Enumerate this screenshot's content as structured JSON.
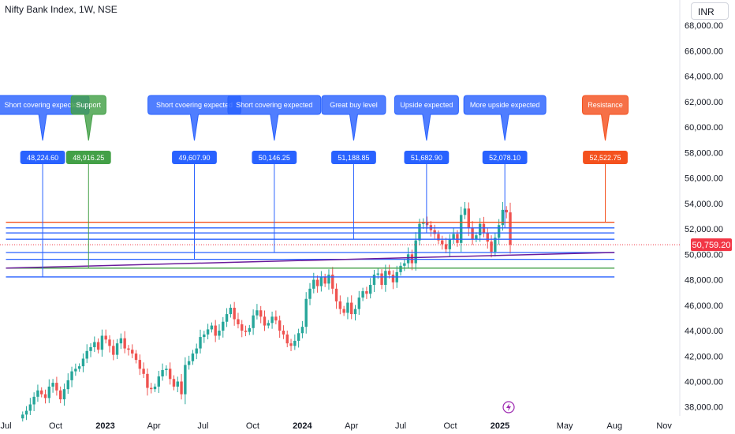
{
  "header": {
    "symbol_title": "Nifty Bank Index, 1W, NSE",
    "currency": "INR"
  },
  "colors": {
    "up": "#26a69a",
    "down": "#ef5350",
    "blue": "#2962ff",
    "green": "#43a047",
    "orange": "#f4511e",
    "purple": "#6a1b9a",
    "last_price": "#f23645"
  },
  "chart_data": {
    "type": "candlestick",
    "title": "Nifty Bank Index, 1W, NSE",
    "ylim": [
      37300,
      70000
    ],
    "x_range": [
      "2022-06-20",
      "2025-11-30"
    ],
    "y_ticks": [
      "38,000.00",
      "40,000.00",
      "42,000.00",
      "44,000.00",
      "46,000.00",
      "48,000.00",
      "50,000.00",
      "52,000.00",
      "54,000.00",
      "56,000.00",
      "58,000.00",
      "60,000.00",
      "62,000.00",
      "64,000.00",
      "66,000.00",
      "68,000.00"
    ],
    "x_ticks": [
      {
        "label": "Jul",
        "date": "2022-07-01",
        "bold": false
      },
      {
        "label": "Oct",
        "date": "2022-10-01",
        "bold": false
      },
      {
        "label": "2023",
        "date": "2023-01-01",
        "bold": true
      },
      {
        "label": "Apr",
        "date": "2023-04-01",
        "bold": false
      },
      {
        "label": "Jul",
        "date": "2023-07-01",
        "bold": false
      },
      {
        "label": "Oct",
        "date": "2023-10-01",
        "bold": false
      },
      {
        "label": "2024",
        "date": "2024-01-01",
        "bold": true
      },
      {
        "label": "Apr",
        "date": "2024-04-01",
        "bold": false
      },
      {
        "label": "Jul",
        "date": "2024-07-01",
        "bold": false
      },
      {
        "label": "Oct",
        "date": "2024-10-01",
        "bold": false
      },
      {
        "label": "2025",
        "date": "2025-01-01",
        "bold": true
      },
      {
        "label": "May",
        "date": "2025-05-01",
        "bold": false
      },
      {
        "label": "Aug",
        "date": "2025-08-01",
        "bold": false
      },
      {
        "label": "Nov",
        "date": "2025-11-01",
        "bold": false
      }
    ],
    "last_price": "50,759.20",
    "last_price_value": 50759.2,
    "weekly_closes": [
      37400,
      37700,
      38200,
      38800,
      39300,
      39000,
      38700,
      39600,
      39900,
      39300,
      38600,
      39400,
      40100,
      40800,
      41000,
      41200,
      41800,
      42400,
      42700,
      43100,
      42500,
      43600,
      43300,
      42800,
      42100,
      43000,
      43400,
      42600,
      42500,
      42200,
      41700,
      41000,
      40600,
      39500,
      39400,
      39600,
      40400,
      40900,
      41000,
      40200,
      39600,
      40000,
      39000,
      41300,
      41600,
      42200,
      42600,
      43500,
      43700,
      44100,
      44400,
      43600,
      44000,
      44700,
      45300,
      45800,
      44900,
      44500,
      44000,
      43900,
      44200,
      45200,
      45600,
      45100,
      44400,
      44600,
      45100,
      44800,
      44000,
      43700,
      43000,
      42800,
      43200,
      43800,
      44300,
      46500,
      47300,
      48000,
      47500,
      48200,
      47700,
      48400,
      47300,
      46300,
      45700,
      45400,
      46200,
      45300,
      45700,
      46600,
      47100,
      46900,
      47600,
      48400,
      48500,
      47600,
      48700,
      48400,
      47800,
      48600,
      49100,
      49300,
      50000,
      49300,
      51100,
      52400,
      52500,
      52300,
      51900,
      51600,
      51100,
      50800,
      50400,
      51200,
      51600,
      50900,
      53100,
      53600,
      52100,
      51200,
      51500,
      52400,
      51700,
      51000,
      50200,
      51300,
      52300,
      53500,
      53300,
      50759
    ],
    "levels": [
      {
        "value": 48224.6,
        "color": "#2962ff"
      },
      {
        "value": 48916.25,
        "color": "#43a047"
      },
      {
        "value": 49607.9,
        "color": "#2962ff"
      },
      {
        "value": 50146.25,
        "color": "#2962ff"
      },
      {
        "value": 51188.85,
        "color": "#2962ff"
      },
      {
        "value": 51682.9,
        "color": "#2962ff"
      },
      {
        "value": 52078.1,
        "color": "#2962ff"
      },
      {
        "value": 52522.75,
        "color": "#f4511e"
      }
    ],
    "trendlines": [
      {
        "from": [
          "2022-07-01",
          48916
        ],
        "to": [
          "2025-08-01",
          50146
        ],
        "color": "#6a1b9a"
      }
    ],
    "callouts": [
      {
        "text": "Short covering expected",
        "value_label": "48,224.60",
        "value": 48224.6,
        "anchor_date": "2022-09-07",
        "color": "#2962ff"
      },
      {
        "text": "Support",
        "value_label": "48,916.25",
        "value": 48916.25,
        "anchor_date": "2022-12-01",
        "color": "#43a047"
      },
      {
        "text": "Short cvoering expected",
        "value_label": "49,607.90",
        "value": 49607.9,
        "anchor_date": "2023-06-15",
        "color": "#2962ff"
      },
      {
        "text": "Short covering expected",
        "value_label": "50,146.25",
        "value": 50146.25,
        "anchor_date": "2023-11-10",
        "color": "#2962ff"
      },
      {
        "text": "Great buy level",
        "value_label": "51,188.85",
        "value": 51188.85,
        "anchor_date": "2024-04-05",
        "color": "#2962ff"
      },
      {
        "text": "Upside expected",
        "value_label": "51,682.90",
        "value": 51682.9,
        "anchor_date": "2024-08-18",
        "color": "#2962ff"
      },
      {
        "text": "More upside expected",
        "value_label": "52,078.10",
        "value": 52078.1,
        "anchor_date": "2025-01-10",
        "color": "#2962ff"
      },
      {
        "text": "Resistance",
        "value_label": "52,522.75",
        "value": 52522.75,
        "anchor_date": "2025-07-15",
        "color": "#f4511e"
      }
    ]
  }
}
